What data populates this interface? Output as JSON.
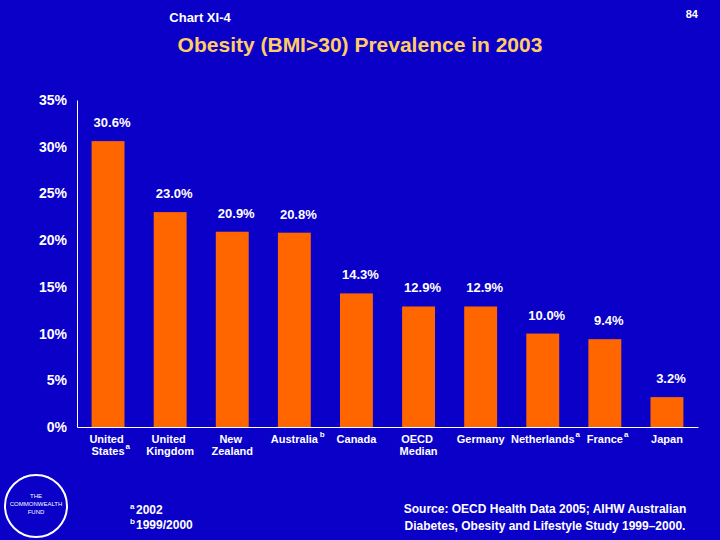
{
  "header": {
    "chart_number": "Chart XI-4",
    "page": "84"
  },
  "chart_data": {
    "type": "bar",
    "title": "Obesity (BMI>30) Prevalence in 2003",
    "categories": [
      "United States",
      "United Kingdom",
      "New Zealand",
      "Australia",
      "Canada",
      "OECD Median",
      "Germany",
      "Netherlands",
      "France",
      "Japan"
    ],
    "category_marks": [
      "a",
      null,
      null,
      "b",
      null,
      null,
      null,
      "a",
      "a",
      null
    ],
    "values": [
      30.6,
      23.0,
      20.9,
      20.8,
      14.3,
      12.9,
      12.9,
      10.0,
      9.4,
      3.2
    ],
    "value_labels": [
      "30.6%",
      "23.0%",
      "20.9%",
      "20.8%",
      "14.3%",
      "12.9%",
      "12.9%",
      "10.0%",
      "9.4%",
      "3.2%"
    ],
    "data_labels": true,
    "color": "#ff6600",
    "ylim": [
      0,
      35
    ],
    "yticks": [
      {
        "value": 0,
        "label": "0%"
      },
      {
        "value": 5,
        "label": "5%"
      },
      {
        "value": 10,
        "label": "10%"
      },
      {
        "value": 15,
        "label": "15%"
      },
      {
        "value": 20,
        "label": "20%"
      },
      {
        "value": 25,
        "label": "25%"
      },
      {
        "value": 30,
        "label": "30%"
      },
      {
        "value": 35,
        "label": "35%"
      }
    ]
  },
  "footnotes": [
    {
      "mark": "a",
      "text": "2002"
    },
    {
      "mark": "b",
      "text": "1999/2000"
    }
  ],
  "source": [
    "Source: OECD Health Data 2005; AIHW Australian",
    "Diabetes, Obesity and Lifestyle Study 1999–2000."
  ],
  "logo": [
    "THE",
    "COMMONWEALTH",
    "FUND"
  ]
}
